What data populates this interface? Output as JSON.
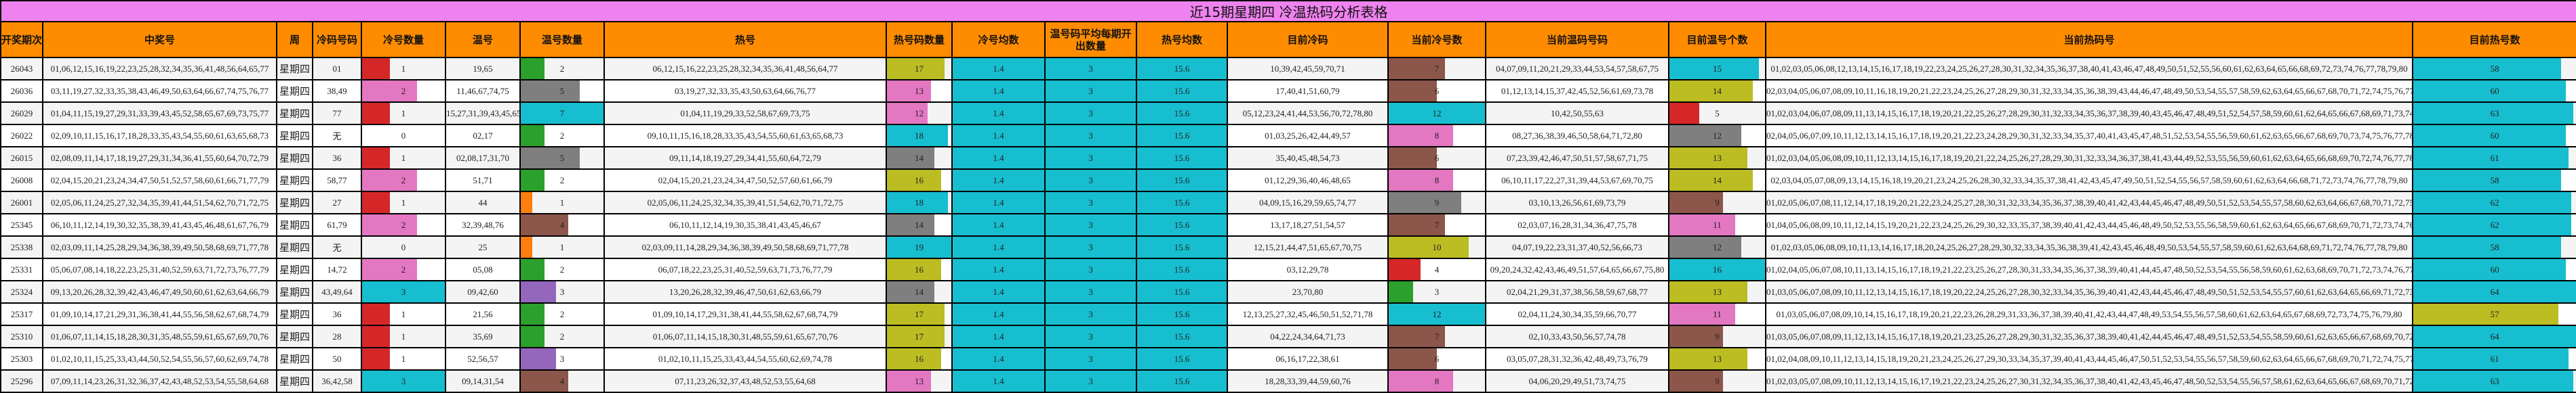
{
  "title": "近15期星期四 冷温热码分析表格",
  "headers": [
    "开奖期次",
    "中奖号",
    "周",
    "冷码号码",
    "冷号数量",
    "温号",
    "温号数量",
    "热号",
    "热号码数量",
    "冷号均数",
    "温号码平均每期开出数量",
    "热号均数",
    "目前冷码",
    "当前冷号数",
    "当前温码号码",
    "目前温号个数",
    "当前热码号",
    "目前热号数"
  ],
  "colors": {
    "title_bg": "#ee82ee",
    "header_bg": "#ff8c00",
    "avg_bg": "#17becf"
  },
  "rows": [
    {
      "issue": "26043",
      "winning": "01,06,12,15,16,19,22,23,25,28,32,34,35,36,41,48,56,64,65,77",
      "week": "星期四",
      "cold": "01",
      "cold_count": "1",
      "warm": "19,65",
      "warm_count": "2",
      "hot": "06,12,15,16,22,23,25,28,32,34,35,36,41,48,56,64,77",
      "hot_count": "17",
      "cold_avg": "1.4",
      "warm_avg": "3",
      "hot_avg": "15.6",
      "cur_cold": "10,39,42,45,59,70,71",
      "cur_cold_count": "7",
      "cur_warm": "04,07,09,11,20,21,29,33,44,53,54,57,58,67,75",
      "cur_warm_count": "15",
      "cur_hot": "01,02,03,05,06,08,12,13,14,15,16,17,18,19,22,23,24,25,26,27,28,30,31,32,34,35,36,37,38,40,41,43,46,47,48,49,50,51,52,55,56,60,61,62,63,64,65,66,68,69,72,73,74,76,77,78,79,80",
      "cur_hot_count": "58"
    },
    {
      "issue": "26036",
      "winning": "03,11,19,27,32,33,35,38,43,46,49,50,63,64,66,67,74,75,76,77",
      "week": "星期四",
      "cold": "38,49",
      "cold_count": "2",
      "warm": "11,46,67,74,75",
      "warm_count": "5",
      "hot": "03,19,27,32,33,35,43,50,63,64,66,76,77",
      "hot_count": "13",
      "cold_avg": "1.4",
      "warm_avg": "3",
      "hot_avg": "15.6",
      "cur_cold": "17,40,41,51,60,79",
      "cur_cold_count": "6",
      "cur_warm": "01,12,13,14,15,37,42,45,52,56,61,69,73,78",
      "cur_warm_count": "14",
      "cur_hot": "02,03,04,05,06,07,08,09,10,11,16,18,19,20,21,22,23,24,25,26,27,28,29,30,31,32,33,34,35,36,38,39,43,44,46,47,48,49,50,53,54,55,57,58,59,62,63,64,65,66,67,68,70,71,72,74,75,76,77,80",
      "cur_hot_count": "60"
    },
    {
      "issue": "26029",
      "winning": "01,04,11,15,19,27,29,31,33,39,43,45,52,58,65,67,69,73,75,77",
      "week": "星期四",
      "cold": "77",
      "cold_count": "1",
      "warm": "15,27,31,39,43,45,65",
      "warm_count": "7",
      "hot": "01,04,11,19,29,33,52,58,67,69,73,75",
      "hot_count": "12",
      "cold_avg": "1.4",
      "warm_avg": "3",
      "hot_avg": "15.6",
      "cur_cold": "05,12,23,24,41,44,53,56,70,72,78,80",
      "cur_cold_count": "12",
      "cur_warm": "10,42,50,55,63",
      "cur_warm_count": "5",
      "cur_hot": "01,02,03,04,06,07,08,09,11,13,14,15,16,17,18,19,20,21,22,25,26,27,28,29,30,31,32,33,34,35,36,37,38,39,40,43,45,46,47,48,49,51,52,54,57,58,59,60,61,62,64,65,66,67,68,69,71,73,74,75,76,77,79",
      "cur_hot_count": "63"
    },
    {
      "issue": "26022",
      "winning": "02,09,10,11,15,16,17,18,28,33,35,43,54,55,60,61,63,65,68,73",
      "week": "星期四",
      "cold": "无",
      "cold_count": "0",
      "warm": "02,17",
      "warm_count": "2",
      "hot": "09,10,11,15,16,18,28,33,35,43,54,55,60,61,63,65,68,73",
      "hot_count": "18",
      "cold_avg": "1.4",
      "warm_avg": "3",
      "hot_avg": "15.6",
      "cur_cold": "01,03,25,26,42,44,49,57",
      "cur_cold_count": "8",
      "cur_warm": "08,27,36,38,39,46,50,58,64,71,72,80",
      "cur_warm_count": "12",
      "cur_hot": "02,04,05,06,07,09,10,11,12,13,14,15,16,17,18,19,20,21,22,23,24,28,29,30,31,32,33,34,35,37,40,41,43,45,47,48,51,52,53,54,55,56,59,60,61,62,63,65,66,67,68,69,70,73,74,75,76,77,78,79",
      "cur_hot_count": "60"
    },
    {
      "issue": "26015",
      "winning": "02,08,09,11,14,17,18,19,27,29,31,34,36,41,55,60,64,70,72,79",
      "week": "星期四",
      "cold": "36",
      "cold_count": "1",
      "warm": "02,08,17,31,70",
      "warm_count": "5",
      "hot": "09,11,14,18,19,27,29,34,41,55,60,64,72,79",
      "hot_count": "14",
      "cold_avg": "1.4",
      "warm_avg": "3",
      "hot_avg": "15.6",
      "cur_cold": "35,40,45,48,54,73",
      "cur_cold_count": "6",
      "cur_warm": "07,23,39,42,46,47,50,51,57,58,67,71,75",
      "cur_warm_count": "13",
      "cur_hot": "01,02,03,04,05,06,08,09,10,11,12,13,14,15,16,17,18,19,20,21,22,24,25,26,27,28,29,30,31,32,33,34,36,37,38,41,43,44,49,52,53,55,56,59,60,61,62,63,64,65,66,68,69,70,72,74,76,77,78,79,80",
      "cur_hot_count": "61"
    },
    {
      "issue": "26008",
      "winning": "02,04,15,20,21,23,24,34,47,50,51,52,57,58,60,61,66,71,77,79",
      "week": "星期四",
      "cold": "58,77",
      "cold_count": "2",
      "warm": "51,71",
      "warm_count": "2",
      "hot": "02,04,15,20,21,23,24,34,47,50,52,57,60,61,66,79",
      "hot_count": "16",
      "cold_avg": "1.4",
      "warm_avg": "3",
      "hot_avg": "15.6",
      "cur_cold": "01,12,29,36,40,46,48,65",
      "cur_cold_count": "8",
      "cur_warm": "06,10,11,17,22,27,31,39,44,53,67,69,70,75",
      "cur_warm_count": "14",
      "cur_hot": "02,03,04,05,07,08,09,13,14,15,16,18,19,20,21,23,24,25,26,28,30,32,33,34,35,37,38,41,42,43,45,47,49,50,51,52,54,55,56,57,58,59,60,61,62,63,64,66,68,71,72,73,74,76,77,78,79,80",
      "cur_hot_count": "58"
    },
    {
      "issue": "26001",
      "winning": "02,05,06,11,24,25,27,32,34,35,39,41,44,51,54,62,70,71,72,75",
      "week": "星期四",
      "cold": "27",
      "cold_count": "1",
      "warm": "44",
      "warm_count": "1",
      "hot": "02,05,06,11,24,25,32,34,35,39,41,51,54,62,70,71,72,75",
      "hot_count": "18",
      "cold_avg": "1.4",
      "warm_avg": "3",
      "hot_avg": "15.6",
      "cur_cold": "04,09,15,16,29,59,65,74,77",
      "cur_cold_count": "9",
      "cur_warm": "03,10,13,26,56,61,69,73,79",
      "cur_warm_count": "9",
      "cur_hot": "01,02,05,06,07,08,11,12,14,17,18,19,20,21,22,23,24,25,27,28,30,31,32,33,34,35,36,37,38,39,40,41,42,43,44,45,46,47,48,49,50,51,52,53,54,55,57,58,60,62,63,64,66,67,68,70,71,72,75,76,78,80",
      "cur_hot_count": "62"
    },
    {
      "issue": "25345",
      "winning": "06,10,11,12,14,19,30,32,35,38,39,41,43,45,46,48,61,67,76,79",
      "week": "星期四",
      "cold": "61,79",
      "cold_count": "2",
      "warm": "32,39,48,76",
      "warm_count": "4",
      "hot": "06,10,11,12,14,19,30,35,38,41,43,45,46,67",
      "hot_count": "14",
      "cold_avg": "1.4",
      "warm_avg": "3",
      "hot_avg": "15.6",
      "cur_cold": "13,17,18,27,51,54,57",
      "cur_cold_count": "7",
      "cur_warm": "02,03,07,16,28,31,34,36,47,75,78",
      "cur_warm_count": "11",
      "cur_hot": "01,04,05,06,08,09,10,11,12,14,15,19,20,21,22,23,24,25,26,29,30,32,33,35,37,38,39,40,41,42,43,44,45,46,48,49,50,52,53,55,56,58,59,60,61,62,63,64,65,66,67,68,69,70,71,72,73,74,76,77,79,80",
      "cur_hot_count": "62"
    },
    {
      "issue": "25338",
      "winning": "02,03,09,11,14,25,28,29,34,36,38,39,49,50,58,68,69,71,77,78",
      "week": "星期四",
      "cold": "无",
      "cold_count": "0",
      "warm": "25",
      "warm_count": "1",
      "hot": "02,03,09,11,14,28,29,34,36,38,39,49,50,58,68,69,71,77,78",
      "hot_count": "19",
      "cold_avg": "1.4",
      "warm_avg": "3",
      "hot_avg": "15.6",
      "cur_cold": "12,15,21,44,47,51,65,67,70,75",
      "cur_cold_count": "10",
      "cur_warm": "04,07,19,22,23,31,37,40,52,56,66,73",
      "cur_warm_count": "12",
      "cur_hot": "01,02,03,05,06,08,09,10,11,13,14,16,17,18,20,24,25,26,27,28,29,30,32,33,34,35,36,38,39,41,42,43,45,46,48,49,50,53,54,55,57,58,59,60,61,62,63,64,68,69,71,72,74,76,77,78,79,80",
      "cur_hot_count": "58"
    },
    {
      "issue": "25331",
      "winning": "05,06,07,08,14,18,22,23,25,31,40,52,59,63,71,72,73,76,77,79",
      "week": "星期四",
      "cold": "14,72",
      "cold_count": "2",
      "warm": "05,08",
      "warm_count": "2",
      "hot": "06,07,18,22,23,25,31,40,52,59,63,71,73,76,77,79",
      "hot_count": "16",
      "cold_avg": "1.4",
      "warm_avg": "3",
      "hot_avg": "15.6",
      "cur_cold": "03,12,29,78",
      "cur_cold_count": "4",
      "cur_warm": "09,20,24,32,42,43,46,49,51,57,64,65,66,67,75,80",
      "cur_warm_count": "16",
      "cur_hot": "01,02,04,05,06,07,08,10,11,13,14,15,16,17,18,19,21,22,23,25,26,27,28,30,31,33,34,35,36,37,38,39,40,41,44,45,47,48,50,52,53,54,55,56,58,59,60,61,62,63,68,69,70,71,72,73,74,76,77,79",
      "cur_hot_count": "60"
    },
    {
      "issue": "25324",
      "winning": "09,13,20,26,28,32,39,42,43,46,47,49,50,60,61,62,63,64,66,79",
      "week": "星期四",
      "cold": "43,49,64",
      "cold_count": "3",
      "warm": "09,42,60",
      "warm_count": "3",
      "hot": "13,20,26,28,32,39,46,47,50,61,62,63,66,79",
      "hot_count": "14",
      "cold_avg": "1.4",
      "warm_avg": "3",
      "hot_avg": "15.6",
      "cur_cold": "23,70,80",
      "cur_cold_count": "3",
      "cur_warm": "02,04,21,29,31,37,38,56,58,59,67,68,77",
      "cur_warm_count": "13",
      "cur_hot": "01,03,05,06,07,08,09,10,11,12,13,14,15,16,17,18,19,20,22,24,25,26,27,28,30,32,33,34,35,36,39,40,41,42,43,44,45,46,47,48,49,50,51,52,53,54,55,57,60,61,62,63,64,65,66,69,71,72,73,74,75,76,78,79",
      "cur_hot_count": "64"
    },
    {
      "issue": "25317",
      "winning": "01,09,10,14,17,21,29,31,36,38,41,44,55,56,58,62,67,68,74,79",
      "week": "星期四",
      "cold": "36",
      "cold_count": "1",
      "warm": "21,56",
      "warm_count": "2",
      "hot": "01,09,10,14,17,29,31,38,41,44,55,58,62,67,68,74,79",
      "hot_count": "17",
      "cold_avg": "1.4",
      "warm_avg": "3",
      "hot_avg": "15.6",
      "cur_cold": "12,13,25,27,32,45,46,50,51,52,71,78",
      "cur_cold_count": "12",
      "cur_warm": "02,04,11,24,30,34,35,59,66,70,77",
      "cur_warm_count": "11",
      "cur_hot": "01,03,05,06,07,08,09,10,14,15,16,17,18,19,20,21,22,23,26,28,29,31,33,36,37,38,39,40,41,42,43,44,47,48,49,53,54,55,56,57,58,60,61,62,63,64,65,67,68,69,72,73,74,75,76,79,80",
      "cur_hot_count": "57"
    },
    {
      "issue": "25310",
      "winning": "01,06,07,11,14,15,18,28,30,31,35,48,55,59,61,65,67,69,70,76",
      "week": "星期四",
      "cold": "28",
      "cold_count": "1",
      "warm": "35,69",
      "warm_count": "2",
      "hot": "01,06,07,11,14,15,18,30,31,48,55,59,61,65,67,70,76",
      "hot_count": "17",
      "cold_avg": "1.4",
      "warm_avg": "3",
      "hot_avg": "15.6",
      "cur_cold": "04,22,24,34,64,71,73",
      "cur_cold_count": "7",
      "cur_warm": "02,10,33,43,50,56,57,74,78",
      "cur_warm_count": "9",
      "cur_hot": "01,03,05,06,07,08,09,11,12,13,14,15,16,17,18,19,20,21,23,25,26,27,28,29,30,31,32,35,36,37,38,39,40,41,42,44,45,46,47,48,49,51,52,53,54,55,58,59,60,61,62,63,65,66,67,68,69,70,72,75,76,77,79,80",
      "cur_hot_count": "64"
    },
    {
      "issue": "25303",
      "winning": "01,02,10,11,15,25,33,43,44,50,52,54,55,56,57,60,62,69,74,78",
      "week": "星期四",
      "cold": "50",
      "cold_count": "1",
      "warm": "52,56,57",
      "warm_count": "3",
      "hot": "01,02,10,11,15,25,33,43,44,54,55,60,62,69,74,78",
      "hot_count": "16",
      "cold_avg": "1.4",
      "warm_avg": "3",
      "hot_avg": "15.6",
      "cur_cold": "06,16,17,22,38,61",
      "cur_cold_count": "6",
      "cur_warm": "03,05,07,28,31,32,36,42,48,49,73,76,79",
      "cur_warm_count": "13",
      "cur_hot": "01,02,04,08,09,10,11,12,13,14,15,18,19,20,21,23,24,25,26,27,29,30,33,34,35,37,39,40,41,43,44,45,46,47,50,51,52,53,54,55,56,57,58,59,60,62,63,64,65,66,67,68,69,70,71,72,74,75,77,78,80",
      "cur_hot_count": "61"
    },
    {
      "issue": "25296",
      "winning": "07,09,11,14,23,26,31,32,36,37,42,43,48,52,53,54,55,58,64,68",
      "week": "星期四",
      "cold": "36,42,58",
      "cold_count": "3",
      "warm": "09,14,31,54",
      "warm_count": "4",
      "hot": "07,11,23,26,32,37,43,48,52,53,55,64,68",
      "hot_count": "13",
      "cold_avg": "1.4",
      "warm_avg": "3",
      "hot_avg": "15.6",
      "cur_cold": "18,28,33,39,44,59,60,76",
      "cur_cold_count": "8",
      "cur_warm": "04,06,20,29,49,51,73,74,75",
      "cur_warm_count": "9",
      "cur_hot": "01,02,03,05,07,08,09,10,11,12,13,14,15,16,17,19,21,22,23,24,25,26,27,30,31,32,34,35,36,37,38,40,41,42,43,45,46,47,48,50,52,53,54,55,56,57,58,61,62,63,64,65,66,67,68,69,70,71,72,77,78,79,80",
      "cur_hot_count": "63"
    }
  ]
}
